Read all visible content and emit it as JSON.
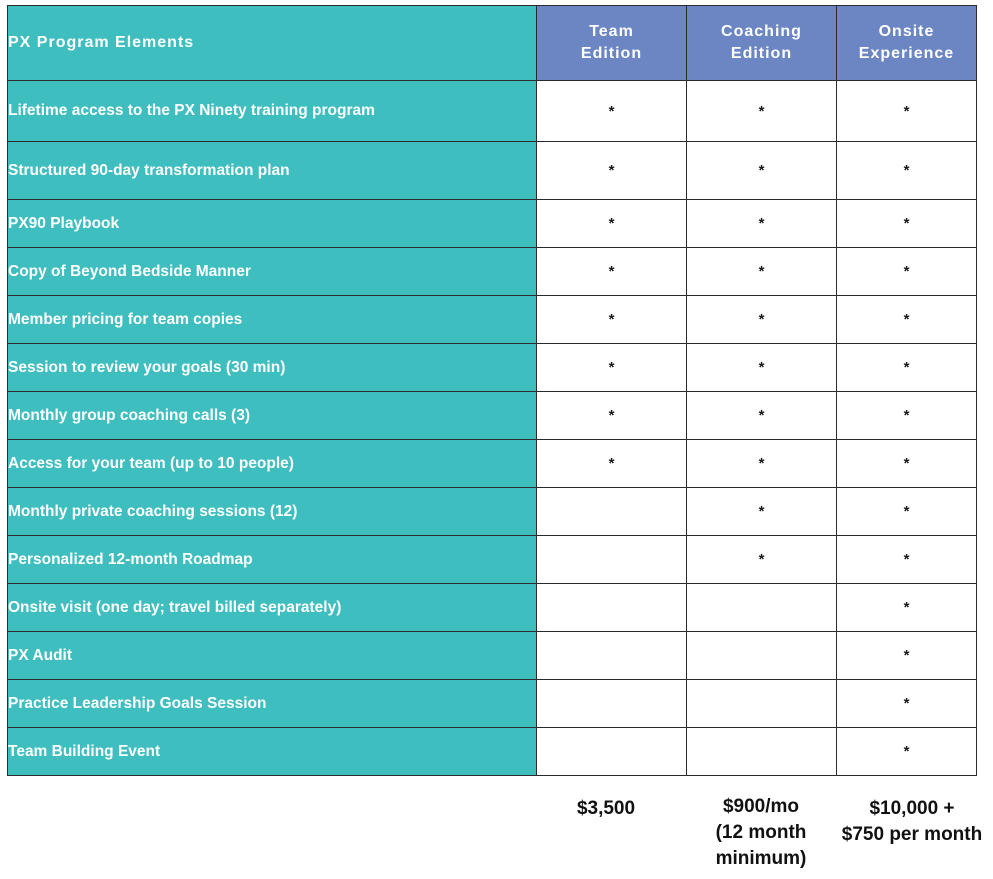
{
  "table": {
    "header": {
      "feature": "PX Program Elements",
      "plans": [
        {
          "line1": "Team",
          "line2": "Edition"
        },
        {
          "line1": "Coaching",
          "line2": "Edition"
        },
        {
          "line1": "Onsite",
          "line2": "Experience"
        }
      ]
    },
    "mark_symbol": "*",
    "rows": [
      {
        "feature": "Lifetime access to the PX Ninety training program",
        "team": "*",
        "coaching": "*",
        "onsite": "*"
      },
      {
        "feature": "Structured 90-day transformation plan",
        "team": "*",
        "coaching": "*",
        "onsite": "*"
      },
      {
        "feature": "PX90 Playbook",
        "team": "*",
        "coaching": "*",
        "onsite": "*"
      },
      {
        "feature": "Copy of Beyond Bedside Manner",
        "team": "*",
        "coaching": "*",
        "onsite": "*"
      },
      {
        "feature": "Member pricing for team copies",
        "team": "*",
        "coaching": "*",
        "onsite": "*"
      },
      {
        "feature": "Session to review your goals (30 min)",
        "team": "*",
        "coaching": "*",
        "onsite": "*"
      },
      {
        "feature": "Monthly group coaching calls (3)",
        "team": "*",
        "coaching": "*",
        "onsite": "*"
      },
      {
        "feature": "Access for your team (up to 10 people)",
        "team": "*",
        "coaching": "*",
        "onsite": "*"
      },
      {
        "feature": "Monthly private coaching sessions (12)",
        "team": "",
        "coaching": "*",
        "onsite": "*"
      },
      {
        "feature": "Personalized 12-month Roadmap",
        "team": "",
        "coaching": "*",
        "onsite": "*"
      },
      {
        "feature": "Onsite visit (one day; travel billed separately)",
        "team": "",
        "coaching": "",
        "onsite": "*"
      },
      {
        "feature": "PX Audit",
        "team": "",
        "coaching": "",
        "onsite": "*"
      },
      {
        "feature": "Practice Leadership Goals Session",
        "team": "",
        "coaching": "",
        "onsite": "*"
      },
      {
        "feature": "Team Building Event",
        "team": "",
        "coaching": "",
        "onsite": "*"
      }
    ]
  },
  "pricing": {
    "team": [
      "$3,500"
    ],
    "coaching": [
      "$900/mo",
      "(12 month",
      "minimum)"
    ],
    "onsite": [
      "$10,000 +",
      "$750 per month"
    ]
  },
  "colors": {
    "feature_bg": "#3fbec0",
    "plan_header_bg": "#6b86c3",
    "text_light": "#ffffff",
    "text_dark": "#111111"
  }
}
